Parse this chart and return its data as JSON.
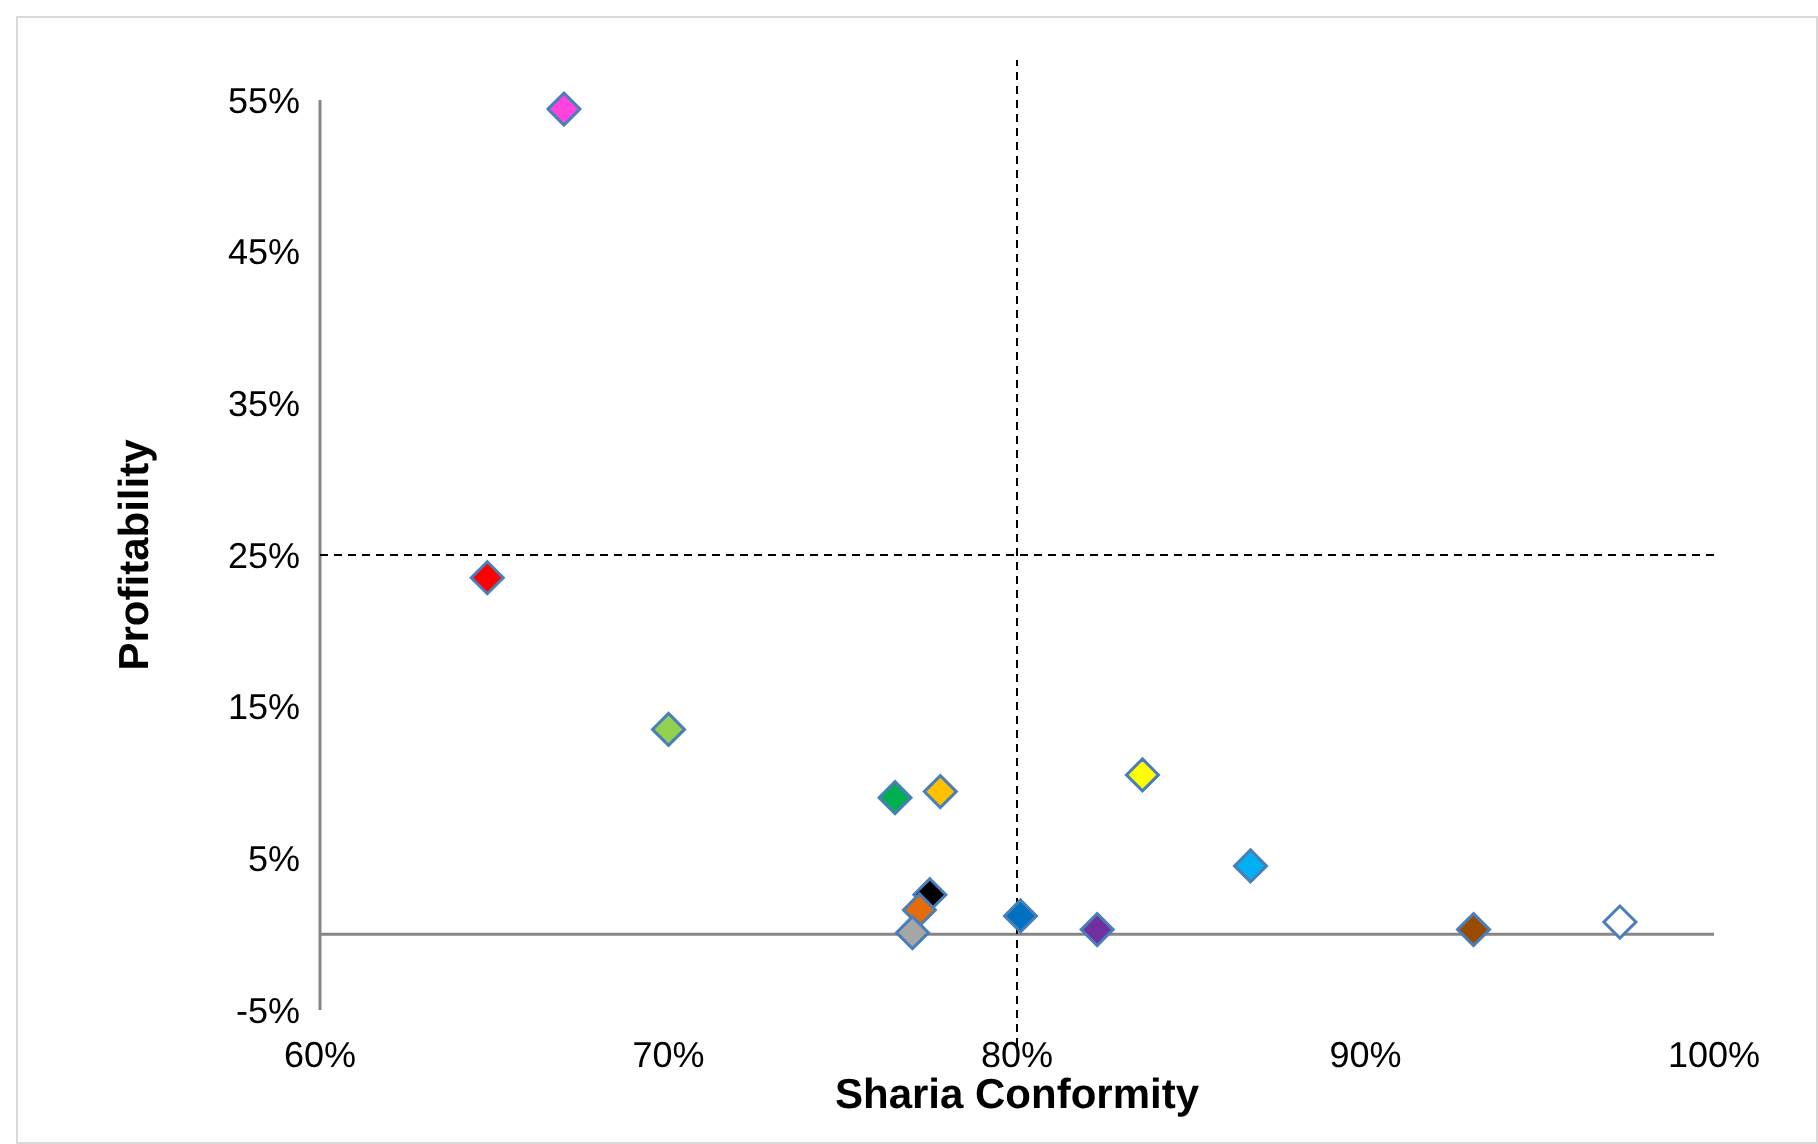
{
  "chart_data": {
    "type": "scatter",
    "xlabel": "Sharia Conformity",
    "ylabel": "Profitability",
    "x": [
      67.0,
      64.8,
      70.0,
      76.5,
      77.8,
      83.6,
      86.7,
      77.5,
      77.2,
      77.0,
      80.1,
      82.3,
      93.1,
      97.3
    ],
    "values": [
      54.4,
      23.5,
      13.5,
      9.0,
      9.4,
      10.5,
      4.5,
      2.6,
      1.6,
      0.1,
      1.2,
      0.3,
      0.3,
      0.8
    ],
    "colors": [
      "#ff44dd",
      "#ff0000",
      "#92d050",
      "#00b050",
      "#ffc000",
      "#ffff00",
      "#00b0f0",
      "#000000",
      "#e46c0a",
      "#a6a6a6",
      "#0070c0",
      "#7030a0",
      "#994c00",
      "#ffffff"
    ],
    "marker": "diamond",
    "grid": false,
    "xlim": [
      60,
      100
    ],
    "xticks": [
      {
        "value": 60,
        "label": "60%"
      },
      {
        "value": 70,
        "label": "70%"
      },
      {
        "value": 80,
        "label": "80%"
      },
      {
        "value": 90,
        "label": "90%"
      },
      {
        "value": 100,
        "label": "100%"
      }
    ],
    "ylim": [
      -5,
      55
    ],
    "yticks": [
      {
        "value": -5,
        "label": "-5%"
      },
      {
        "value": 5,
        "label": "5%"
      },
      {
        "value": 15,
        "label": "15%"
      },
      {
        "value": 25,
        "label": "25%"
      },
      {
        "value": 35,
        "label": "35%"
      },
      {
        "value": 45,
        "label": "45%"
      },
      {
        "value": 55,
        "label": "55%"
      }
    ],
    "ref_lines": [
      {
        "axis": "x",
        "value": 80,
        "line_style": "dashed",
        "color": "#000000"
      },
      {
        "axis": "y",
        "value": 25,
        "line_style": "dashed",
        "color": "#000000"
      }
    ]
  }
}
